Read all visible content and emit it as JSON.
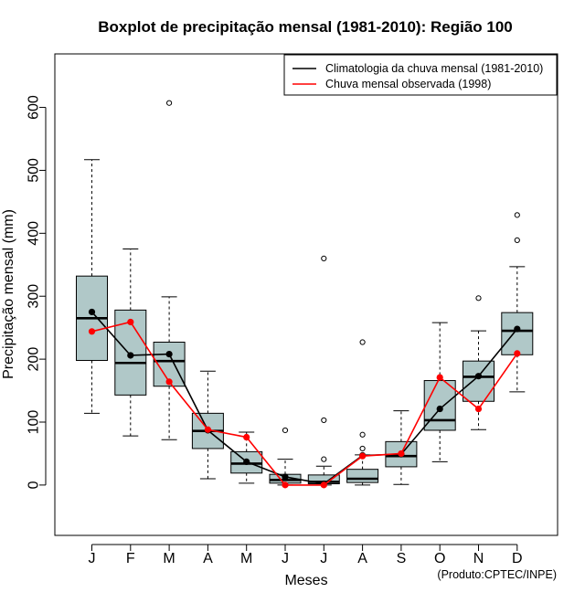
{
  "chart_data": {
    "type": "boxplot",
    "title": "Boxplot de precipitação mensal (1981-2010): Região 100",
    "xlabel": "Meses",
    "ylabel": "Precipitação mensal (mm)",
    "ylim": [
      -80,
      685
    ],
    "yticks": [
      0,
      100,
      200,
      300,
      400,
      500,
      600
    ],
    "categories": [
      "J",
      "F",
      "M",
      "A",
      "M",
      "J",
      "J",
      "A",
      "S",
      "O",
      "N",
      "D"
    ],
    "boxes": [
      {
        "whisker_low": 114,
        "q1": 198,
        "median": 265,
        "q3": 332,
        "whisker_high": 517,
        "outliers": []
      },
      {
        "whisker_low": 78,
        "q1": 143,
        "median": 194,
        "q3": 278,
        "whisker_high": 375,
        "outliers": []
      },
      {
        "whisker_low": 72,
        "q1": 157,
        "median": 197,
        "q3": 227,
        "whisker_high": 299,
        "outliers": [
          607
        ]
      },
      {
        "whisker_low": 10,
        "q1": 58,
        "median": 86,
        "q3": 114,
        "whisker_high": 181,
        "outliers": []
      },
      {
        "whisker_low": 3,
        "q1": 19,
        "median": 34,
        "q3": 53,
        "whisker_high": 84,
        "outliers": []
      },
      {
        "whisker_low": 0,
        "q1": 3,
        "median": 8,
        "q3": 17,
        "whisker_high": 41,
        "outliers": [
          87
        ]
      },
      {
        "whisker_low": 0,
        "q1": 2,
        "median": 5,
        "q3": 16,
        "whisker_high": 30,
        "outliers": [
          41,
          103,
          360
        ]
      },
      {
        "whisker_low": 0,
        "q1": 4,
        "median": 10,
        "q3": 25,
        "whisker_high": 48,
        "outliers": [
          58,
          80,
          227
        ]
      },
      {
        "whisker_low": 1,
        "q1": 29,
        "median": 46,
        "q3": 69,
        "whisker_high": 118,
        "outliers": []
      },
      {
        "whisker_low": 37,
        "q1": 87,
        "median": 103,
        "q3": 166,
        "whisker_high": 258,
        "outliers": []
      },
      {
        "whisker_low": 88,
        "q1": 133,
        "median": 172,
        "q3": 197,
        "whisker_high": 245,
        "outliers": [
          297
        ]
      },
      {
        "whisker_low": 148,
        "q1": 207,
        "median": 245,
        "q3": 274,
        "whisker_high": 347,
        "outliers": [
          389,
          429
        ]
      }
    ],
    "series": [
      {
        "name": "Climatologia da chuva mensal (1981-2010)",
        "color": "#000000",
        "values": [
          275,
          206,
          208,
          87,
          37,
          13,
          2,
          47,
          49,
          121,
          173,
          248
        ]
      },
      {
        "name": "Chuva mensal observada (1998)",
        "color": "#ff0000",
        "values": [
          244,
          259,
          164,
          88,
          76,
          0,
          0,
          46,
          50,
          171,
          121,
          209
        ]
      }
    ],
    "legend_position": "top-right",
    "box_fill": "#b0c8c8",
    "credit": "(Produto:CPTEC/INPE)"
  }
}
